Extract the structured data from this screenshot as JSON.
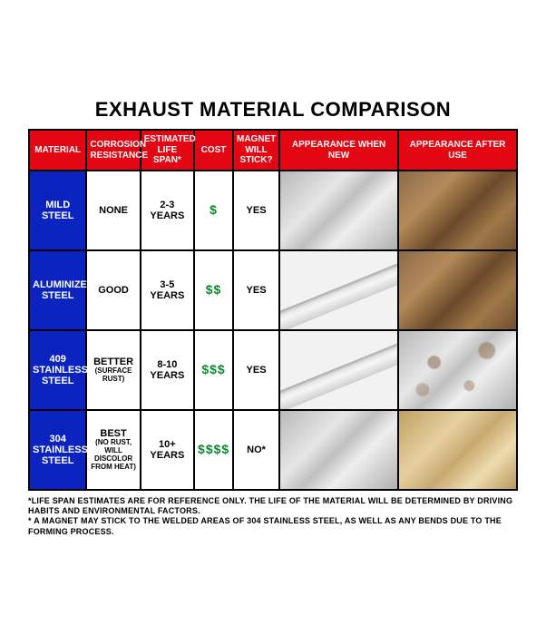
{
  "title": "EXHAUST MATERIAL COMPARISON",
  "columns": {
    "material": "MATERIAL",
    "corrosion": "CORROSION RESISTANCE",
    "lifespan": "ESTIMATED LIFE SPAN*",
    "cost": "COST",
    "magnet": "MAGNET WILL STICK?",
    "appearance_new": "APPEARANCE WHEN NEW",
    "appearance_used": "APPEARANCE AFTER USE"
  },
  "rows": [
    {
      "material": "MILD STEEL",
      "corrosion": "NONE",
      "lifespan": "2-3 YEARS",
      "cost": "$",
      "magnet": "YES",
      "new_style": "tube",
      "used_style": "tube rusty"
    },
    {
      "material": "ALUMINIZED STEEL",
      "corrosion": "GOOD",
      "lifespan": "3-5 YEARS",
      "cost": "$$",
      "magnet": "YES",
      "new_style": "pipe",
      "used_style": "tube rusty"
    },
    {
      "material": "409 STAINLESS STEEL",
      "corrosion": "BETTER",
      "corrosion_note": "(SURFACE RUST)",
      "lifespan": "8-10 YEARS",
      "cost": "$$$",
      "magnet": "YES",
      "new_style": "pipe",
      "used_style": "tube spotty"
    },
    {
      "material": "304 STAINLESS STEEL",
      "corrosion": "BEST",
      "corrosion_note": "(NO RUST, WILL DISCOLOR FROM HEAT)",
      "lifespan": "10+ YEARS",
      "cost": "$$$$",
      "magnet": "NO*",
      "new_style": "tube",
      "used_style": "tube gold"
    }
  ],
  "footnotes": {
    "line1": "*LIFE SPAN ESTIMATES ARE FOR REFERENCE ONLY. THE LIFE OF THE MATERIAL WILL BE DETERMINED BY DRIVING HABITS AND ENVIRONMENTAL FACTORS.",
    "line2": "* A MAGNET MAY STICK TO THE WELDED AREAS OF 304 STAINLESS STEEL, AS WELL AS ANY BENDS DUE TO THE FORMING PROCESS."
  },
  "colors": {
    "header_bg": "#e30613",
    "rowhead_bg": "#0b24c0",
    "cost_text": "#0a8a2e",
    "border": "#000000",
    "background": "#ffffff"
  }
}
